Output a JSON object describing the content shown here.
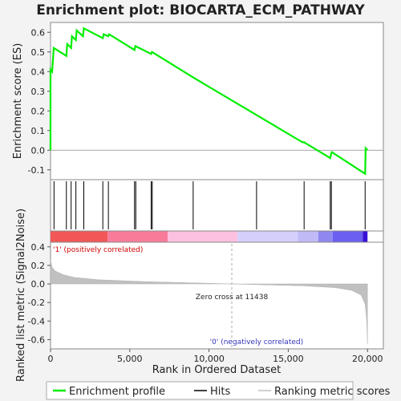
{
  "chart_data": {
    "type": "line",
    "title": "Enrichment plot: BIOCARTA_ECM_PATHWAY",
    "enrichment_panel": {
      "ylabel": "Enrichment score (ES)",
      "ylim": [
        -0.15,
        0.65
      ],
      "yticks": [
        -0.1,
        0.0,
        0.1,
        0.2,
        0.3,
        0.4,
        0.5,
        0.6
      ],
      "ytick_labels": [
        "-0.1",
        "0.0",
        "0.1",
        "0.2",
        "0.3",
        "0.4",
        "0.5",
        "0.6"
      ],
      "series": [
        {
          "name": "Enrichment profile",
          "color": "#00ee00",
          "points": [
            [
              0,
              0.0
            ],
            [
              1,
              0.41
            ],
            [
              100,
              0.4
            ],
            [
              200,
              0.52
            ],
            [
              1000,
              0.48
            ],
            [
              1050,
              0.54
            ],
            [
              1300,
              0.52
            ],
            [
              1350,
              0.58
            ],
            [
              1600,
              0.56
            ],
            [
              1650,
              0.61
            ],
            [
              2050,
              0.58
            ],
            [
              2100,
              0.62
            ],
            [
              3300,
              0.57
            ],
            [
              3350,
              0.59
            ],
            [
              3650,
              0.58
            ],
            [
              3700,
              0.59
            ],
            [
              5300,
              0.51
            ],
            [
              5350,
              0.53
            ],
            [
              6350,
              0.49
            ],
            [
              6400,
              0.5
            ],
            [
              9000,
              0.37
            ],
            [
              15900,
              0.04
            ],
            [
              16000,
              0.04
            ],
            [
              17650,
              -0.04
            ],
            [
              17700,
              -0.02
            ],
            [
              17750,
              -0.01
            ],
            [
              19850,
              -0.12
            ],
            [
              19880,
              0.01
            ],
            [
              20000,
              0.0
            ]
          ]
        }
      ],
      "zero_line": true
    },
    "hits": [
      220,
      1000,
      1300,
      1600,
      2100,
      3300,
      3650,
      5300,
      5380,
      6350,
      6420,
      9000,
      13000,
      16000,
      17650,
      17720,
      19850
    ],
    "ranking_panel": {
      "ylabel": "Ranked list metric (Signal2Noise)",
      "xlabel": "Rank in Ordered Dataset",
      "xlim": [
        0,
        21000
      ],
      "xticks": [
        0,
        5000,
        10000,
        15000,
        20000
      ],
      "xtick_labels": [
        "0",
        "5,000",
        "10,000",
        "15,000",
        "20,000"
      ],
      "ylim": [
        -0.7,
        0.45
      ],
      "yticks": [
        -0.6,
        -0.4,
        -0.2,
        0.0,
        0.2,
        0.4
      ],
      "ytick_labels": [
        "-0.6",
        "-0.4",
        "-0.2",
        "0.0",
        "0.2",
        "0.4"
      ],
      "metric_curve": [
        [
          0,
          0.26
        ],
        [
          100,
          0.18
        ],
        [
          300,
          0.14
        ],
        [
          800,
          0.1
        ],
        [
          1500,
          0.07
        ],
        [
          3000,
          0.045
        ],
        [
          6000,
          0.025
        ],
        [
          9000,
          0.012
        ],
        [
          11438,
          0.0
        ],
        [
          14000,
          -0.012
        ],
        [
          16000,
          -0.02
        ],
        [
          18000,
          -0.04
        ],
        [
          19000,
          -0.07
        ],
        [
          19600,
          -0.12
        ],
        [
          19850,
          -0.22
        ],
        [
          19950,
          -0.4
        ],
        [
          20000,
          -0.65
        ]
      ],
      "zero_cross_rank": 11438,
      "zero_cross_label": "Zero cross at 11438",
      "positive_label": "'1' (positively correlated)",
      "negative_label": "'0' (negatively correlated)",
      "fill_color": "#c0c0c0"
    },
    "colorbar": {
      "segments": [
        {
          "to": 3600,
          "color": "#f25757"
        },
        {
          "to": 7400,
          "color": "#f87c9a"
        },
        {
          "to": 11800,
          "color": "#fcc0e0"
        },
        {
          "to": 15600,
          "color": "#d4d0fb"
        },
        {
          "to": 16900,
          "color": "#c0bbf6"
        },
        {
          "to": 17800,
          "color": "#8f88f0"
        },
        {
          "to": 19700,
          "color": "#6a5ff0"
        },
        {
          "to": 20000,
          "color": "#3a12d6"
        }
      ]
    },
    "legend": [
      {
        "label": "Enrichment profile",
        "color": "#00ee00"
      },
      {
        "label": "Hits",
        "color": "#000000"
      },
      {
        "label": "Ranking metric scores",
        "color": "#c0c0c0"
      }
    ]
  }
}
